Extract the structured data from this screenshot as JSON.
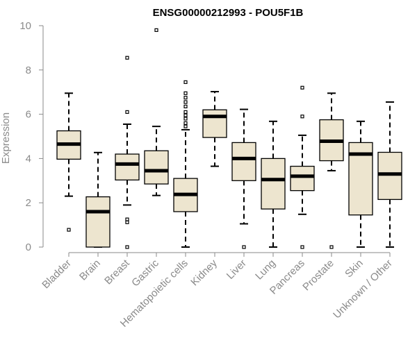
{
  "chart_data": {
    "type": "boxplot",
    "title": "ENSG00000212993 - POU5F1B",
    "ylabel": "Expression",
    "xlabel": "",
    "ylim": [
      0,
      10
    ],
    "yticks": [
      0,
      2,
      4,
      6,
      8,
      10
    ],
    "grid": false,
    "legend": "none",
    "colors": {
      "box_fill": "#ede5cf",
      "box_stroke": "#000000",
      "axis": "#8a8a8a",
      "title": "#000000"
    },
    "categories": [
      "Bladder",
      "Brain",
      "Breast",
      "Gastric",
      "Hematopoietic cells",
      "Kidney",
      "Liver",
      "Lung",
      "Pancreas",
      "Prostate",
      "Skin",
      "Unknown / Other"
    ],
    "boxes": [
      {
        "q1": 3.97,
        "median": 4.65,
        "q3": 5.25,
        "whisker_low": 2.3,
        "whisker_high": 6.95,
        "outliers": [
          0.78
        ]
      },
      {
        "q1": 0.0,
        "median": 1.6,
        "q3": 2.27,
        "whisker_low": 0.0,
        "whisker_high": 4.27,
        "outliers": []
      },
      {
        "q1": 3.03,
        "median": 3.75,
        "q3": 4.2,
        "whisker_low": 1.9,
        "whisker_high": 5.55,
        "outliers": [
          8.55,
          6.1,
          1.25,
          1.12,
          0.0
        ]
      },
      {
        "q1": 2.85,
        "median": 3.45,
        "q3": 4.35,
        "whisker_low": 2.33,
        "whisker_high": 5.45,
        "outliers": [
          9.8
        ]
      },
      {
        "q1": 1.6,
        "median": 2.38,
        "q3": 3.1,
        "whisker_low": 0.0,
        "whisker_high": 5.3,
        "outliers": [
          7.45,
          6.95,
          6.75,
          6.55,
          6.35,
          6.1,
          5.95,
          5.8,
          5.6,
          5.45
        ]
      },
      {
        "q1": 4.95,
        "median": 5.9,
        "q3": 6.2,
        "whisker_low": 3.65,
        "whisker_high": 7.02,
        "outliers": []
      },
      {
        "q1": 3.0,
        "median": 4.0,
        "q3": 4.72,
        "whisker_low": 1.05,
        "whisker_high": 6.22,
        "outliers": [
          0.0
        ]
      },
      {
        "q1": 1.72,
        "median": 3.05,
        "q3": 4.0,
        "whisker_low": 0.0,
        "whisker_high": 5.68,
        "outliers": []
      },
      {
        "q1": 2.55,
        "median": 3.2,
        "q3": 3.65,
        "whisker_low": 1.48,
        "whisker_high": 5.05,
        "outliers": [
          7.2,
          5.9,
          0.0
        ]
      },
      {
        "q1": 3.9,
        "median": 4.78,
        "q3": 5.75,
        "whisker_low": 3.45,
        "whisker_high": 6.95,
        "outliers": [
          0.0
        ]
      },
      {
        "q1": 1.45,
        "median": 4.2,
        "q3": 4.72,
        "whisker_low": 0.0,
        "whisker_high": 5.68,
        "outliers": []
      },
      {
        "q1": 2.15,
        "median": 3.3,
        "q3": 4.28,
        "whisker_low": 0.0,
        "whisker_high": 6.55,
        "outliers": []
      }
    ]
  }
}
